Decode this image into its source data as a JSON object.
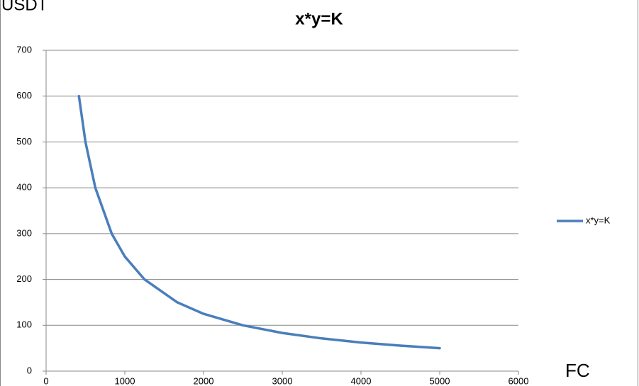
{
  "chart_data": {
    "type": "line",
    "title": "x*y=K",
    "y_label": "USDT",
    "x_label": "FC",
    "x": [
      417,
      500,
      625,
      833,
      1000,
      1250,
      1667,
      2000,
      2500,
      3000,
      3500,
      4000,
      4500,
      5000
    ],
    "series": [
      {
        "name": "x*y=K",
        "color": "#4a7ebb",
        "values": [
          600,
          500,
          400,
          300,
          250,
          200,
          150,
          125,
          100,
          83.3,
          71.4,
          62.5,
          55.6,
          50
        ]
      }
    ],
    "xlim": [
      0,
      6000
    ],
    "xticks": [
      0,
      1000,
      2000,
      3000,
      4000,
      5000,
      6000
    ],
    "ylim": [
      0,
      700
    ],
    "yticks": [
      0,
      100,
      200,
      300,
      400,
      500,
      600,
      700
    ],
    "grid": true,
    "legend": "right"
  }
}
